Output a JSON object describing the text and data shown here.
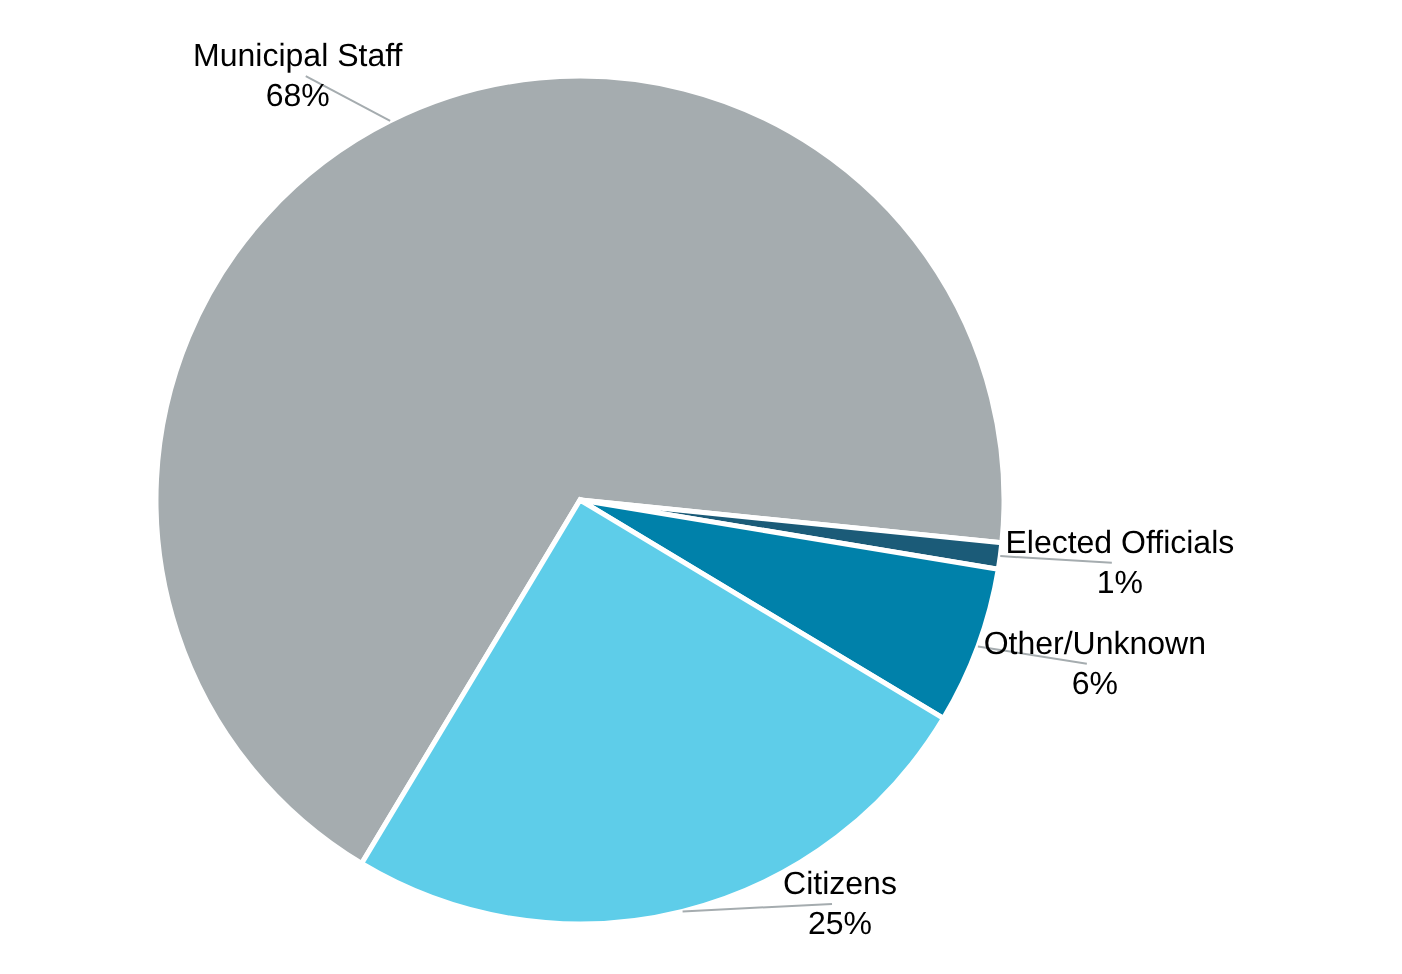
{
  "chart_data": {
    "type": "pie",
    "categories": [
      "Municipal Staff",
      "Elected Officials",
      "Other/Unknown",
      "Citizens"
    ],
    "values": [
      68,
      1,
      6,
      25
    ],
    "value_labels": [
      "68%",
      "1%",
      "6%",
      "25%"
    ],
    "colors": [
      "#a5acaf",
      "#1b5b78",
      "#0081aa",
      "#5ecde9"
    ]
  }
}
